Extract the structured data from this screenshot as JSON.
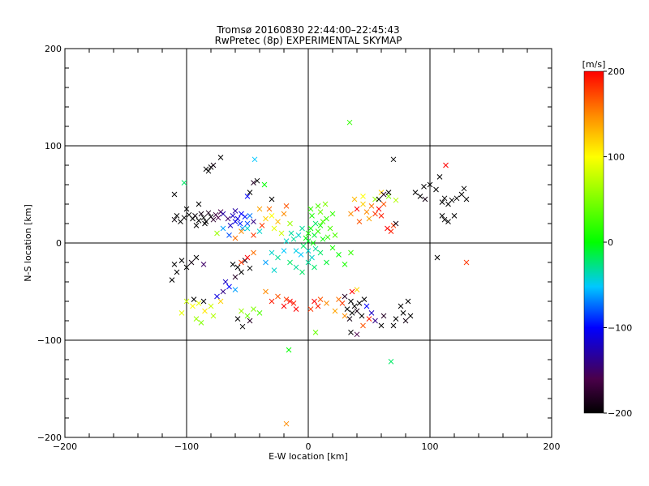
{
  "chart_data": {
    "type": "scatter",
    "title": "Tromsø 20160830 22:44:00–22:45:43",
    "subtitle": "RwPretec (8p) EXPERIMENTAL SKYMAP",
    "xlabel": "E-W location [km]",
    "ylabel": "N-S location [km]",
    "xlim": [
      -200,
      200
    ],
    "ylim": [
      -200,
      200
    ],
    "xticks": [
      "-200",
      "-100",
      "0",
      "100",
      "200"
    ],
    "yticks": [
      "-200",
      "-100",
      "0",
      "100",
      "200"
    ],
    "grid": true,
    "colorbar": {
      "label": "[m/s]",
      "range": [
        -200,
        200
      ],
      "ticks": [
        "-200",
        "-100",
        "0",
        "100",
        "200"
      ],
      "colormap": [
        "#000000",
        "#4a004a",
        "#0000ff",
        "#00c8ff",
        "#00ff00",
        "#ffff00",
        "#ff8c00",
        "#ff0000"
      ]
    },
    "points": [
      {
        "x": -98,
        "y": 29,
        "v": -200
      },
      {
        "x": -95,
        "y": 25,
        "v": -200
      },
      {
        "x": -93,
        "y": 28,
        "v": -195
      },
      {
        "x": -90,
        "y": 23,
        "v": -200
      },
      {
        "x": -88,
        "y": 30,
        "v": -190
      },
      {
        "x": -86,
        "y": 26,
        "v": -200
      },
      {
        "x": -84,
        "y": 22,
        "v": -200
      },
      {
        "x": -82,
        "y": 31,
        "v": -185
      },
      {
        "x": -80,
        "y": 27,
        "v": -200
      },
      {
        "x": -78,
        "y": 24,
        "v": -175
      },
      {
        "x": -76,
        "y": 29,
        "v": -170
      },
      {
        "x": -74,
        "y": 26,
        "v": -160
      },
      {
        "x": -72,
        "y": 32,
        "v": -160
      },
      {
        "x": -102,
        "y": 26,
        "v": -200
      },
      {
        "x": -105,
        "y": 22,
        "v": -200
      },
      {
        "x": -108,
        "y": 28,
        "v": -200
      },
      {
        "x": -110,
        "y": 24,
        "v": -195
      },
      {
        "x": -100,
        "y": 35,
        "v": -200
      },
      {
        "x": -110,
        "y": 50,
        "v": -200
      },
      {
        "x": -90,
        "y": 40,
        "v": -200
      },
      {
        "x": -92,
        "y": 18,
        "v": -200
      },
      {
        "x": -85,
        "y": 20,
        "v": -200
      },
      {
        "x": -80,
        "y": 78,
        "v": -200
      },
      {
        "x": -82,
        "y": 74,
        "v": -200
      },
      {
        "x": -78,
        "y": 80,
        "v": -190
      },
      {
        "x": -84,
        "y": 76,
        "v": -200
      },
      {
        "x": -62,
        "y": 28,
        "v": -120
      },
      {
        "x": -58,
        "y": 25,
        "v": -110
      },
      {
        "x": -55,
        "y": 30,
        "v": -100
      },
      {
        "x": -60,
        "y": 22,
        "v": -110
      },
      {
        "x": -56,
        "y": 20,
        "v": -90
      },
      {
        "x": -52,
        "y": 27,
        "v": -95
      },
      {
        "x": -64,
        "y": 18,
        "v": -120
      },
      {
        "x": -60,
        "y": 33,
        "v": -130
      },
      {
        "x": -50,
        "y": 20,
        "v": -80
      },
      {
        "x": -48,
        "y": 28,
        "v": -70
      },
      {
        "x": -54,
        "y": 15,
        "v": -60
      },
      {
        "x": -66,
        "y": 25,
        "v": -150
      },
      {
        "x": -45,
        "y": 22,
        "v": -140
      },
      {
        "x": -70,
        "y": 30,
        "v": -130
      },
      {
        "x": -75,
        "y": 10,
        "v": 60
      },
      {
        "x": -70,
        "y": 15,
        "v": -60
      },
      {
        "x": -65,
        "y": 8,
        "v": -80
      },
      {
        "x": -60,
        "y": 5,
        "v": 160
      },
      {
        "x": -55,
        "y": 12,
        "v": 150
      },
      {
        "x": -50,
        "y": 15,
        "v": -40
      },
      {
        "x": -45,
        "y": 8,
        "v": 180
      },
      {
        "x": -40,
        "y": 12,
        "v": -40
      },
      {
        "x": -35,
        "y": 25,
        "v": 120
      },
      {
        "x": -30,
        "y": 28,
        "v": 100
      },
      {
        "x": -25,
        "y": 22,
        "v": 130
      },
      {
        "x": -20,
        "y": 30,
        "v": 150
      },
      {
        "x": -38,
        "y": 18,
        "v": 180
      },
      {
        "x": -28,
        "y": 15,
        "v": 90
      },
      {
        "x": -32,
        "y": 35,
        "v": 160
      },
      {
        "x": -15,
        "y": 20,
        "v": 60
      },
      {
        "x": -18,
        "y": 38,
        "v": 170
      },
      {
        "x": -40,
        "y": 35,
        "v": 140
      },
      {
        "x": -22,
        "y": 10,
        "v": 80
      },
      {
        "x": -42,
        "y": 64,
        "v": -200
      },
      {
        "x": -45,
        "y": 62,
        "v": -180
      },
      {
        "x": -44,
        "y": 86,
        "v": -50
      },
      {
        "x": -36,
        "y": 60,
        "v": 0
      },
      {
        "x": -50,
        "y": 48,
        "v": -100
      },
      {
        "x": -48,
        "y": 52,
        "v": -200
      },
      {
        "x": -30,
        "y": 45,
        "v": -200
      },
      {
        "x": -2,
        "y": 5,
        "v": 0
      },
      {
        "x": 0,
        "y": 10,
        "v": 10
      },
      {
        "x": 2,
        "y": 15,
        "v": 0
      },
      {
        "x": 5,
        "y": 8,
        "v": -10
      },
      {
        "x": 8,
        "y": 12,
        "v": 20
      },
      {
        "x": 10,
        "y": 18,
        "v": 10
      },
      {
        "x": 12,
        "y": 22,
        "v": 30
      },
      {
        "x": 15,
        "y": 25,
        "v": 20
      },
      {
        "x": 6,
        "y": 20,
        "v": -20
      },
      {
        "x": -5,
        "y": 15,
        "v": -30
      },
      {
        "x": -8,
        "y": 8,
        "v": -40
      },
      {
        "x": 3,
        "y": 28,
        "v": 10
      },
      {
        "x": 18,
        "y": 15,
        "v": 30
      },
      {
        "x": 20,
        "y": 30,
        "v": 20
      },
      {
        "x": 10,
        "y": 32,
        "v": 40
      },
      {
        "x": 0,
        "y": 2,
        "v": -10
      },
      {
        "x": 4,
        "y": 0,
        "v": 0
      },
      {
        "x": -4,
        "y": -3,
        "v": -20
      },
      {
        "x": 0,
        "y": -8,
        "v": -40
      },
      {
        "x": 6,
        "y": -6,
        "v": -30
      },
      {
        "x": -6,
        "y": -12,
        "v": -50
      },
      {
        "x": 3,
        "y": -15,
        "v": -40
      },
      {
        "x": 10,
        "y": -10,
        "v": -20
      },
      {
        "x": -10,
        "y": -8,
        "v": -45
      },
      {
        "x": 12,
        "y": 4,
        "v": 0
      },
      {
        "x": 16,
        "y": 6,
        "v": 20
      },
      {
        "x": -12,
        "y": 4,
        "v": -30
      },
      {
        "x": 8,
        "y": 38,
        "v": 30
      },
      {
        "x": 14,
        "y": 40,
        "v": 50
      },
      {
        "x": 2,
        "y": 35,
        "v": 20
      },
      {
        "x": -14,
        "y": 10,
        "v": -30
      },
      {
        "x": -18,
        "y": 2,
        "v": -40
      },
      {
        "x": 20,
        "y": -5,
        "v": 10
      },
      {
        "x": 22,
        "y": 8,
        "v": 30
      },
      {
        "x": -30,
        "y": -10,
        "v": -40
      },
      {
        "x": -25,
        "y": -15,
        "v": -30
      },
      {
        "x": -20,
        "y": -8,
        "v": -50
      },
      {
        "x": -15,
        "y": -20,
        "v": -20
      },
      {
        "x": -35,
        "y": -20,
        "v": -60
      },
      {
        "x": -10,
        "y": -25,
        "v": -30
      },
      {
        "x": -5,
        "y": -30,
        "v": -20
      },
      {
        "x": -28,
        "y": -28,
        "v": -40
      },
      {
        "x": 0,
        "y": -20,
        "v": -30
      },
      {
        "x": 5,
        "y": -25,
        "v": -20
      },
      {
        "x": 15,
        "y": -20,
        "v": -10
      },
      {
        "x": 25,
        "y": -12,
        "v": 0
      },
      {
        "x": 35,
        "y": -10,
        "v": 20
      },
      {
        "x": 30,
        "y": -22,
        "v": 10
      },
      {
        "x": 55,
        "y": 30,
        "v": 180
      },
      {
        "x": 58,
        "y": 35,
        "v": 200
      },
      {
        "x": 60,
        "y": 28,
        "v": 190
      },
      {
        "x": 62,
        "y": 40,
        "v": 170
      },
      {
        "x": 52,
        "y": 38,
        "v": 160
      },
      {
        "x": 48,
        "y": 32,
        "v": 150
      },
      {
        "x": 45,
        "y": 40,
        "v": 120
      },
      {
        "x": 40,
        "y": 35,
        "v": 200
      },
      {
        "x": 38,
        "y": 45,
        "v": 130
      },
      {
        "x": 65,
        "y": 15,
        "v": 200
      },
      {
        "x": 68,
        "y": 12,
        "v": 190
      },
      {
        "x": 70,
        "y": 18,
        "v": 180
      },
      {
        "x": 55,
        "y": 45,
        "v": 60
      },
      {
        "x": 60,
        "y": 52,
        "v": 120
      },
      {
        "x": 45,
        "y": 48,
        "v": 100
      },
      {
        "x": 66,
        "y": 48,
        "v": 50
      },
      {
        "x": 72,
        "y": 44,
        "v": 70
      },
      {
        "x": 35,
        "y": 30,
        "v": 150
      },
      {
        "x": 42,
        "y": 22,
        "v": 170
      },
      {
        "x": 50,
        "y": 25,
        "v": 140
      },
      {
        "x": 58,
        "y": 45,
        "v": -200
      },
      {
        "x": 62,
        "y": 50,
        "v": -180
      },
      {
        "x": 66,
        "y": 52,
        "v": -200
      },
      {
        "x": 70,
        "y": 86,
        "v": -200
      },
      {
        "x": 72,
        "y": 20,
        "v": -190
      },
      {
        "x": 88,
        "y": 52,
        "v": -200
      },
      {
        "x": 92,
        "y": 48,
        "v": -200
      },
      {
        "x": 96,
        "y": 45,
        "v": -190
      },
      {
        "x": 100,
        "y": 60,
        "v": -200
      },
      {
        "x": 105,
        "y": 55,
        "v": -200
      },
      {
        "x": 110,
        "y": 42,
        "v": -200
      },
      {
        "x": 112,
        "y": 46,
        "v": -200
      },
      {
        "x": 115,
        "y": 40,
        "v": -200
      },
      {
        "x": 118,
        "y": 44,
        "v": -200
      },
      {
        "x": 122,
        "y": 46,
        "v": -200
      },
      {
        "x": 126,
        "y": 50,
        "v": -200
      },
      {
        "x": 128,
        "y": 56,
        "v": -200
      },
      {
        "x": 130,
        "y": 45,
        "v": -200
      },
      {
        "x": 95,
        "y": 58,
        "v": -200
      },
      {
        "x": 108,
        "y": 68,
        "v": -200
      },
      {
        "x": 110,
        "y": 28,
        "v": -200
      },
      {
        "x": 115,
        "y": 22,
        "v": -200
      },
      {
        "x": 120,
        "y": 28,
        "v": -200
      },
      {
        "x": 112,
        "y": 24,
        "v": -200
      },
      {
        "x": 106,
        "y": -15,
        "v": -200
      },
      {
        "x": 113,
        "y": 80,
        "v": 200
      },
      {
        "x": 130,
        "y": -20,
        "v": 180
      },
      {
        "x": -110,
        "y": -22,
        "v": -200
      },
      {
        "x": -108,
        "y": -30,
        "v": -200
      },
      {
        "x": -112,
        "y": -38,
        "v": -200
      },
      {
        "x": -100,
        "y": -25,
        "v": -200
      },
      {
        "x": -104,
        "y": -18,
        "v": -200
      },
      {
        "x": -96,
        "y": -20,
        "v": -190
      },
      {
        "x": -92,
        "y": -15,
        "v": -200
      },
      {
        "x": -86,
        "y": -22,
        "v": -150
      },
      {
        "x": -58,
        "y": -25,
        "v": -200
      },
      {
        "x": -62,
        "y": -22,
        "v": -200
      },
      {
        "x": -55,
        "y": -30,
        "v": -200
      },
      {
        "x": -52,
        "y": -18,
        "v": -190
      },
      {
        "x": -48,
        "y": -26,
        "v": -200
      },
      {
        "x": -60,
        "y": -35,
        "v": -180
      },
      {
        "x": -50,
        "y": -15,
        "v": 200
      },
      {
        "x": -55,
        "y": -20,
        "v": 180
      },
      {
        "x": -45,
        "y": -10,
        "v": 160
      },
      {
        "x": -65,
        "y": -45,
        "v": -100
      },
      {
        "x": -70,
        "y": -50,
        "v": -140
      },
      {
        "x": -60,
        "y": -48,
        "v": -60
      },
      {
        "x": -68,
        "y": -40,
        "v": -120
      },
      {
        "x": -75,
        "y": -55,
        "v": -110
      },
      {
        "x": -100,
        "y": -60,
        "v": 80
      },
      {
        "x": -95,
        "y": -65,
        "v": 100
      },
      {
        "x": -90,
        "y": -62,
        "v": 90
      },
      {
        "x": -85,
        "y": -70,
        "v": 110
      },
      {
        "x": -80,
        "y": -65,
        "v": 80
      },
      {
        "x": -78,
        "y": -75,
        "v": 70
      },
      {
        "x": -92,
        "y": -78,
        "v": 60
      },
      {
        "x": -88,
        "y": -82,
        "v": 50
      },
      {
        "x": -72,
        "y": -60,
        "v": 120
      },
      {
        "x": -104,
        "y": -72,
        "v": 90
      },
      {
        "x": -86,
        "y": -60,
        "v": -200
      },
      {
        "x": -94,
        "y": -58,
        "v": -200
      },
      {
        "x": -55,
        "y": -70,
        "v": 60
      },
      {
        "x": -50,
        "y": -75,
        "v": 40
      },
      {
        "x": -45,
        "y": -68,
        "v": 50
      },
      {
        "x": -40,
        "y": -72,
        "v": 30
      },
      {
        "x": -58,
        "y": -78,
        "v": -200
      },
      {
        "x": -54,
        "y": -86,
        "v": -200
      },
      {
        "x": -48,
        "y": -80,
        "v": -180
      },
      {
        "x": -30,
        "y": -60,
        "v": 190
      },
      {
        "x": -25,
        "y": -55,
        "v": 170
      },
      {
        "x": -20,
        "y": -65,
        "v": 200
      },
      {
        "x": -15,
        "y": -60,
        "v": 200
      },
      {
        "x": -12,
        "y": -62,
        "v": 190
      },
      {
        "x": -18,
        "y": -58,
        "v": 180
      },
      {
        "x": -10,
        "y": -68,
        "v": 200
      },
      {
        "x": -35,
        "y": -50,
        "v": 150
      },
      {
        "x": 5,
        "y": -60,
        "v": 200
      },
      {
        "x": 8,
        "y": -65,
        "v": 190
      },
      {
        "x": 2,
        "y": -68,
        "v": 180
      },
      {
        "x": 10,
        "y": -58,
        "v": 170
      },
      {
        "x": 15,
        "y": -62,
        "v": 150
      },
      {
        "x": 35,
        "y": -60,
        "v": -200
      },
      {
        "x": 38,
        "y": -65,
        "v": -200
      },
      {
        "x": 32,
        "y": -68,
        "v": -200
      },
      {
        "x": 40,
        "y": -70,
        "v": -190
      },
      {
        "x": 42,
        "y": -62,
        "v": -200
      },
      {
        "x": 36,
        "y": -72,
        "v": -200
      },
      {
        "x": 30,
        "y": -55,
        "v": -180
      },
      {
        "x": 44,
        "y": -75,
        "v": -200
      },
      {
        "x": 46,
        "y": -58,
        "v": -200
      },
      {
        "x": 34,
        "y": -78,
        "v": -190
      },
      {
        "x": 25,
        "y": -58,
        "v": 160
      },
      {
        "x": 28,
        "y": -62,
        "v": 180
      },
      {
        "x": 30,
        "y": -75,
        "v": 150
      },
      {
        "x": 22,
        "y": -70,
        "v": 140
      },
      {
        "x": 40,
        "y": -48,
        "v": 120
      },
      {
        "x": 45,
        "y": -85,
        "v": 170
      },
      {
        "x": 50,
        "y": -78,
        "v": 190
      },
      {
        "x": 36,
        "y": -50,
        "v": 200
      },
      {
        "x": 48,
        "y": -65,
        "v": -100
      },
      {
        "x": 52,
        "y": -72,
        "v": -120
      },
      {
        "x": 55,
        "y": -80,
        "v": -140
      },
      {
        "x": 60,
        "y": -85,
        "v": -200
      },
      {
        "x": 62,
        "y": -75,
        "v": -180
      },
      {
        "x": 72,
        "y": -78,
        "v": -200
      },
      {
        "x": 78,
        "y": -72,
        "v": -200
      },
      {
        "x": 80,
        "y": -80,
        "v": -190
      },
      {
        "x": 76,
        "y": -65,
        "v": -200
      },
      {
        "x": 82,
        "y": -60,
        "v": -200
      },
      {
        "x": 70,
        "y": -85,
        "v": -200
      },
      {
        "x": 84,
        "y": -75,
        "v": -200
      },
      {
        "x": 35,
        "y": -92,
        "v": -200
      },
      {
        "x": 40,
        "y": -94,
        "v": -160
      },
      {
        "x": 34,
        "y": 124,
        "v": 20
      },
      {
        "x": 68,
        "y": -122,
        "v": -20
      },
      {
        "x": -16,
        "y": -110,
        "v": 0
      },
      {
        "x": 6,
        "y": -92,
        "v": 40
      },
      {
        "x": -18,
        "y": -186,
        "v": 150
      },
      {
        "x": -102,
        "y": 62,
        "v": -20
      },
      {
        "x": -72,
        "y": 88,
        "v": -200
      }
    ]
  }
}
